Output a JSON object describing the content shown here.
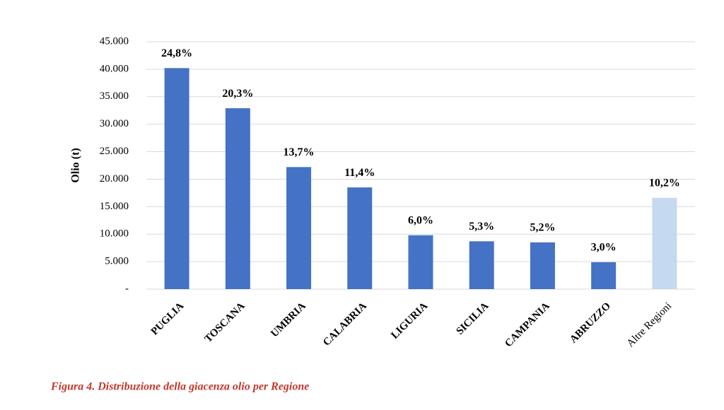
{
  "chart_data": {
    "type": "bar",
    "y_label": "Olio (t)",
    "caption": "Figura 4. Distribuzione della giacenza olio per Regione",
    "categories": [
      "PUGLIA",
      "TOSCANA",
      "UMBRIA",
      "CALABRIA",
      "LIGURIA",
      "SICILIA",
      "CAMPANIA",
      "ABRUZZO",
      "Altre Regioni"
    ],
    "values": [
      40200,
      32900,
      22200,
      18500,
      9800,
      8700,
      8500,
      4900,
      16600
    ],
    "colors": [
      "#4472c4",
      "#4472c4",
      "#4472c4",
      "#4472c4",
      "#4472c4",
      "#4472c4",
      "#4472c4",
      "#4472c4",
      "#c5d9f0"
    ],
    "percent_values": [
      24.8,
      20.3,
      13.7,
      11.4,
      6.0,
      5.3,
      5.2,
      3.0,
      10.2
    ],
    "percent_labels": [
      "24,8%",
      "20,3%",
      "13,7%",
      "11,4%",
      "6,0%",
      "5,3%",
      "5,2%",
      "3,0%",
      "10,2%"
    ],
    "ylim": [
      0,
      45000
    ],
    "yticks": [
      {
        "value": 0,
        "label": "-"
      },
      {
        "value": 5000,
        "label": "5.000"
      },
      {
        "value": 10000,
        "label": "10.000"
      },
      {
        "value": 15000,
        "label": "15.000"
      },
      {
        "value": 20000,
        "label": "20.000"
      },
      {
        "value": 25000,
        "label": "25.000"
      },
      {
        "value": 30000,
        "label": "30.000"
      },
      {
        "value": 35000,
        "label": "35.000"
      },
      {
        "value": 40000,
        "label": "40.000"
      },
      {
        "value": 45000,
        "label": "45.000"
      }
    ],
    "grid": true
  }
}
